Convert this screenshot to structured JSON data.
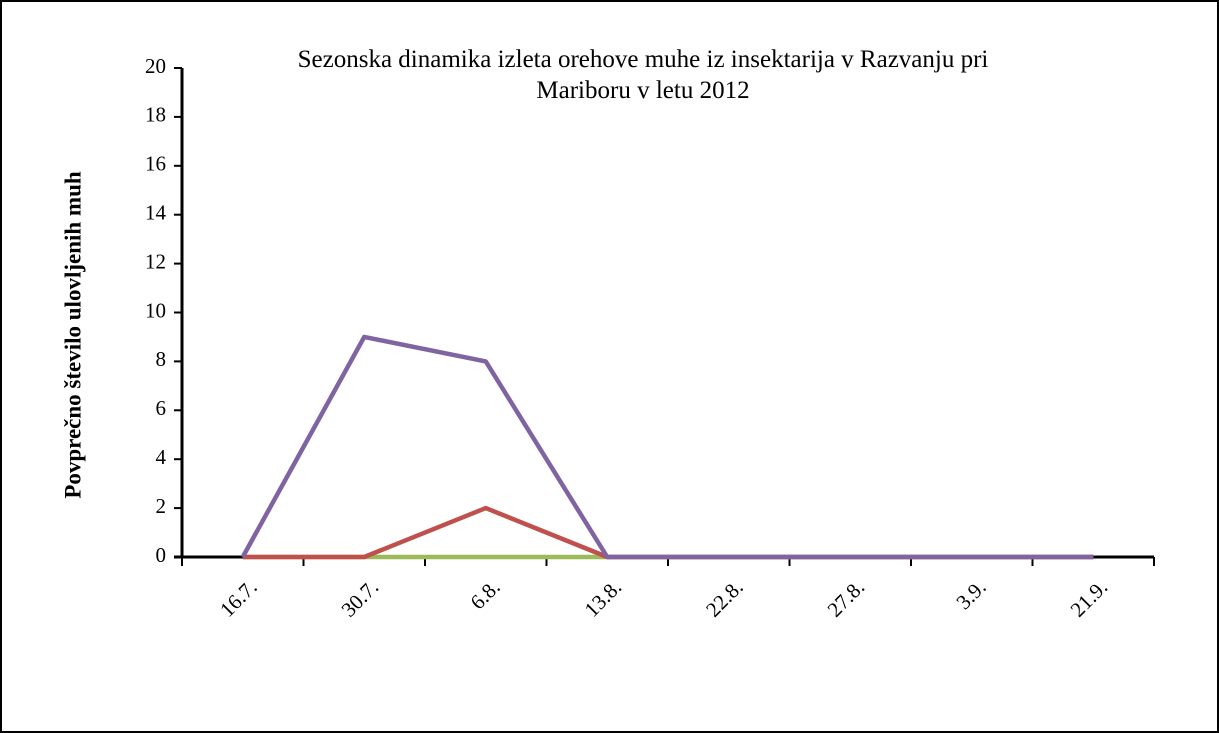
{
  "chart_data": {
    "type": "line",
    "title": "Sezonska dinamika izleta orehove muhe iz insektarija v Razvanju pri Mariboru v letu 2012",
    "y_label": "Povprečno število ulovljenih muh",
    "categories": [
      "16.7.",
      "30.7.",
      "6.8.",
      "13.8.",
      "22.8.",
      "27.8.",
      "3.9.",
      "21.9."
    ],
    "series": [
      {
        "color": "#9bbb59",
        "values": [
          0,
          0,
          0,
          0,
          0,
          0,
          0,
          0
        ]
      },
      {
        "color": "#c0504d",
        "values": [
          0,
          0,
          2,
          0,
          0,
          0,
          0,
          0
        ]
      },
      {
        "color": "#8064a2",
        "values": [
          0,
          9,
          8,
          0,
          0,
          0,
          0,
          0
        ]
      }
    ],
    "ylim": [
      0,
      20
    ],
    "yticks": [
      0,
      2,
      4,
      6,
      8,
      10,
      12,
      14,
      16,
      18,
      20
    ],
    "grid": false
  }
}
